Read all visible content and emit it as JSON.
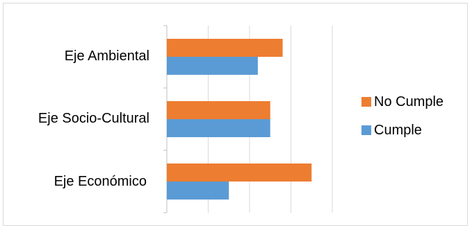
{
  "chart_data": {
    "type": "bar",
    "orientation": "horizontal",
    "categories": [
      "Eje Ambiental",
      "Eje Socio-Cultural",
      "Eje Económico"
    ],
    "series": [
      {
        "name": "No Cumple",
        "color": "#ED7D31",
        "values": [
          2.8,
          2.5,
          3.5
        ]
      },
      {
        "name": "Cumple",
        "color": "#5B9BD5",
        "values": [
          2.2,
          2.5,
          1.5
        ]
      }
    ],
    "xlim": [
      0,
      4
    ],
    "grid": true,
    "legend_position": "right"
  }
}
